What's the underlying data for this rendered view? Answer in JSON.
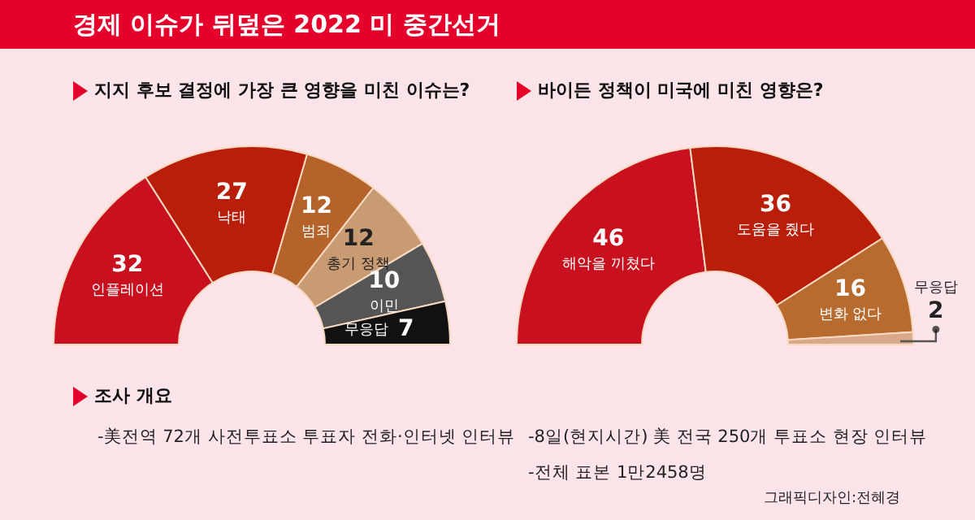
{
  "chart_data": [
    {
      "type": "donut",
      "title": "경제 이슈가 뒤덮은 2022 미 중간선거",
      "subtitle": "지지 후보 결정에 가장 큰 영향을 미친 이슈는?",
      "categories": [
        "인플레이션",
        "낙태",
        "범죄",
        "총기 정책",
        "이민",
        "무응답"
      ],
      "values": [
        32,
        27,
        12,
        12,
        10,
        7
      ],
      "colors": [
        "#c8101e",
        "#b81e0a",
        "#b5632a",
        "#c99b73",
        "#555555",
        "#111111"
      ],
      "data_labels": true
    },
    {
      "type": "donut",
      "subtitle": "바이든 정책이 미국에 미친 영향은?",
      "categories": [
        "해악을 끼쳤다",
        "도움을 줬다",
        "변화 없다",
        "무응답"
      ],
      "values": [
        46,
        36,
        16,
        2
      ],
      "colors": [
        "#c8101e",
        "#b81e0a",
        "#b86b2e",
        "#d9a888"
      ],
      "data_labels": true
    },
    {
      "type": "other",
      "title": "조사 개요",
      "annotations": [
        "-美전역 72개 사전투표소 투표자 전화·인터넷 인터뷰",
        "-8일(현지시간) 美 전국 250개 투표소 현장 인터뷰",
        "-전체 표본 1만2458명",
        "그래픽디자인:전혜경"
      ]
    }
  ]
}
